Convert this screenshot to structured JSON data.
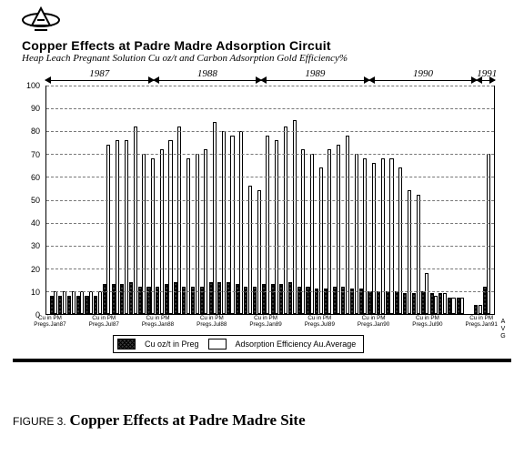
{
  "title": "Copper Effects at Padre Madre Adsorption Circuit",
  "subtitle": "Heap Leach Pregnant Solution Cu oz/t and Carbon Adsorption Gold Efficiency%",
  "caption_figno": "FIGURE 3.",
  "caption_text": "Copper Effects at Padre Madre Site",
  "legend": {
    "cu": "Cu oz/t in Preg",
    "ads": "Adsorption Efficiency Au.Average"
  },
  "avg_label": "A\nV\nG",
  "chart": {
    "type": "bar",
    "ylim": [
      0,
      100
    ],
    "ytick_step": 10,
    "background_color": "#ffffff",
    "grid_color": "#777777",
    "bar_border": "#000000",
    "cu_fill": "#3a3a3a",
    "ads_fill": "#ffffff",
    "years": [
      {
        "label": "1987",
        "from": 0,
        "to": 11
      },
      {
        "label": "1988",
        "from": 12,
        "to": 23
      },
      {
        "label": "1989",
        "from": 24,
        "to": 35
      },
      {
        "label": "1990",
        "from": 36,
        "to": 47
      },
      {
        "label": "1991",
        "from": 48,
        "to": 49
      }
    ],
    "series": [
      {
        "cu": 8,
        "ads": 10
      },
      {
        "cu": 8,
        "ads": 10
      },
      {
        "cu": 8,
        "ads": 10
      },
      {
        "cu": 8,
        "ads": 10
      },
      {
        "cu": 8,
        "ads": 10
      },
      {
        "cu": 8,
        "ads": 10
      },
      {
        "cu": 13,
        "ads": 74
      },
      {
        "cu": 13,
        "ads": 76
      },
      {
        "cu": 13,
        "ads": 76
      },
      {
        "cu": 14,
        "ads": 82
      },
      {
        "cu": 12,
        "ads": 70
      },
      {
        "cu": 12,
        "ads": 68
      },
      {
        "cu": 12,
        "ads": 72
      },
      {
        "cu": 13,
        "ads": 76
      },
      {
        "cu": 14,
        "ads": 82
      },
      {
        "cu": 12,
        "ads": 68
      },
      {
        "cu": 12,
        "ads": 70
      },
      {
        "cu": 12,
        "ads": 72
      },
      {
        "cu": 14,
        "ads": 84
      },
      {
        "cu": 14,
        "ads": 80
      },
      {
        "cu": 14,
        "ads": 78
      },
      {
        "cu": 13,
        "ads": 80
      },
      {
        "cu": 12,
        "ads": 56
      },
      {
        "cu": 12,
        "ads": 54
      },
      {
        "cu": 13,
        "ads": 78
      },
      {
        "cu": 13,
        "ads": 76
      },
      {
        "cu": 13,
        "ads": 82
      },
      {
        "cu": 14,
        "ads": 85
      },
      {
        "cu": 12,
        "ads": 72
      },
      {
        "cu": 12,
        "ads": 70
      },
      {
        "cu": 11,
        "ads": 64
      },
      {
        "cu": 11,
        "ads": 72
      },
      {
        "cu": 12,
        "ads": 74
      },
      {
        "cu": 12,
        "ads": 78
      },
      {
        "cu": 11,
        "ads": 70
      },
      {
        "cu": 11,
        "ads": 68
      },
      {
        "cu": 10,
        "ads": 66
      },
      {
        "cu": 10,
        "ads": 68
      },
      {
        "cu": 10,
        "ads": 68
      },
      {
        "cu": 10,
        "ads": 64
      },
      {
        "cu": 9,
        "ads": 54
      },
      {
        "cu": 9,
        "ads": 52
      },
      {
        "cu": 10,
        "ads": 18
      },
      {
        "cu": 9,
        "ads": 8
      },
      {
        "cu": 9,
        "ads": 9
      },
      {
        "cu": 7,
        "ads": 7
      },
      {
        "cu": 7,
        "ads": 7
      },
      {
        "cu": 0,
        "ads": 0
      },
      {
        "cu": 4,
        "ads": 4
      },
      {
        "cu": 12,
        "ads": 70
      }
    ],
    "x_tick_labels": [
      {
        "at": 0,
        "line1": "Cu in PM",
        "line2": "Pregs.Jan87"
      },
      {
        "at": 6,
        "line1": "Cu in PM",
        "line2": "Pregs.Jul87"
      },
      {
        "at": 12,
        "line1": "Cu in PM",
        "line2": "Pregs.Jan88"
      },
      {
        "at": 18,
        "line1": "Cu in PM",
        "line2": "Pregs.Jul88"
      },
      {
        "at": 24,
        "line1": "Cu in PM",
        "line2": "Pregs.Jan89"
      },
      {
        "at": 30,
        "line1": "Cu in PM",
        "line2": "Pregs.Jul89"
      },
      {
        "at": 36,
        "line1": "Cu in PM",
        "line2": "Pregs.Jan90"
      },
      {
        "at": 42,
        "line1": "Cu in PM",
        "line2": "Pregs.Jul90"
      },
      {
        "at": 48,
        "line1": "Cu in PM",
        "line2": "Pregs.Jan91"
      }
    ]
  }
}
